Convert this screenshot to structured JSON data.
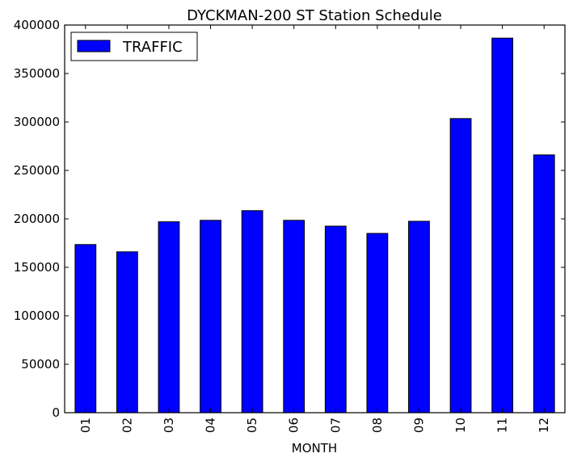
{
  "chart_data": {
    "type": "bar",
    "title": "DYCKMAN-200 ST Station Schedule",
    "xlabel": "MONTH",
    "ylabel": "",
    "categories": [
      "01",
      "02",
      "03",
      "04",
      "05",
      "06",
      "07",
      "08",
      "09",
      "10",
      "11",
      "12"
    ],
    "series": [
      {
        "name": "TRAFFIC",
        "color": "#0000ff",
        "values": [
          173500,
          166000,
          197000,
          198500,
          208500,
          198500,
          192500,
          185000,
          197500,
          303500,
          386500,
          266000
        ]
      }
    ],
    "ylim": [
      0,
      400000
    ],
    "yticks": [
      {
        "value": 0,
        "label": "0"
      },
      {
        "value": 50000,
        "label": "50000"
      },
      {
        "value": 100000,
        "label": "100000"
      },
      {
        "value": 150000,
        "label": "150000"
      },
      {
        "value": 200000,
        "label": "200000"
      },
      {
        "value": 250000,
        "label": "250000"
      },
      {
        "value": 300000,
        "label": "300000"
      },
      {
        "value": 350000,
        "label": "350000"
      },
      {
        "value": 400000,
        "label": "400000"
      }
    ],
    "grid": false,
    "legend_position": "top-left"
  }
}
